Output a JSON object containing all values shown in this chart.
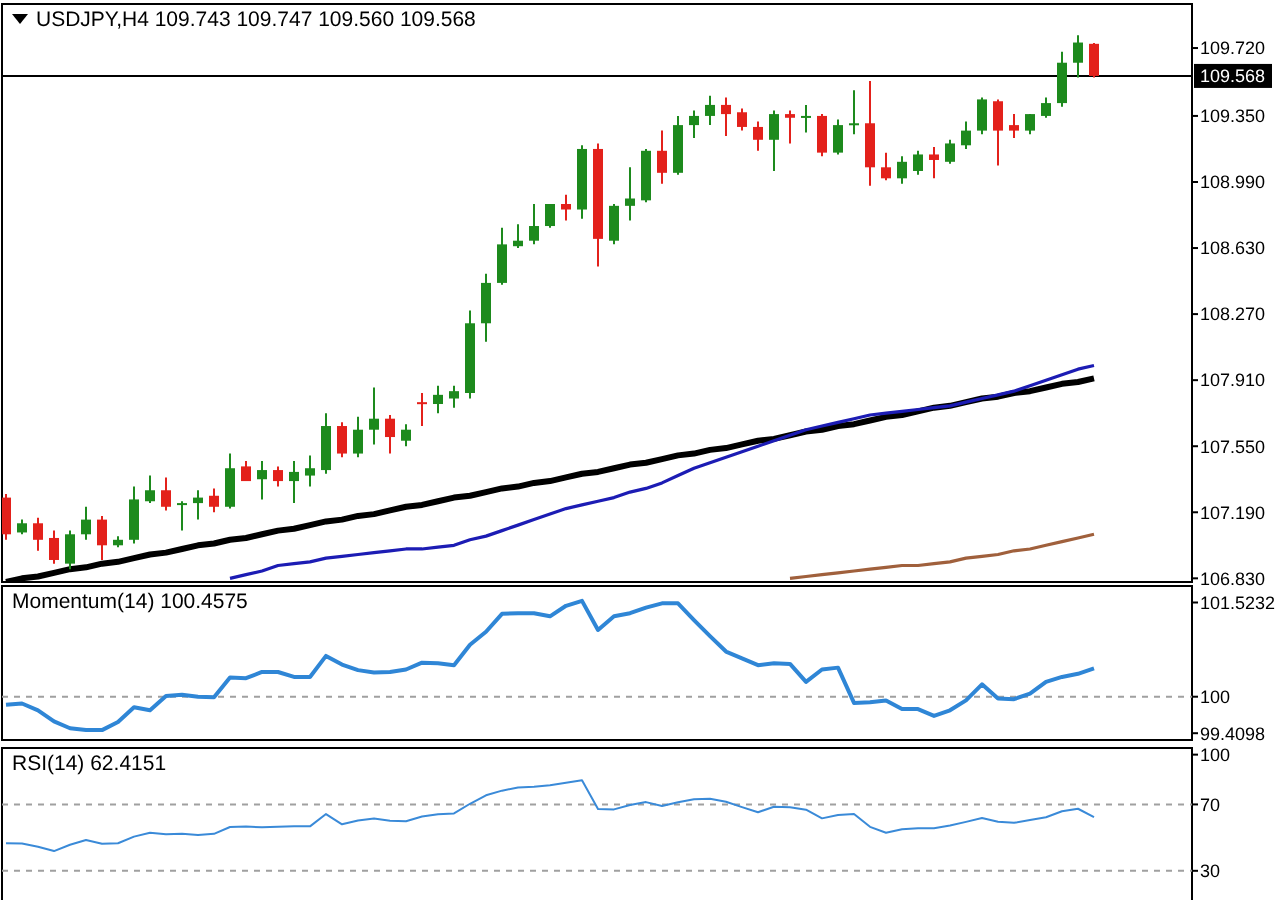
{
  "chart_data": [
    {
      "type": "candlestick",
      "title": "USDJPY,H4  109.743 109.747 109.560 109.568",
      "tick_labels": "y",
      "ylim": [
        106.81,
        109.96
      ],
      "yticks": [
        {
          "value": 106.83,
          "label": "106.830"
        },
        {
          "value": 107.19,
          "label": "107.190"
        },
        {
          "value": 107.55,
          "label": "107.550"
        },
        {
          "value": 107.91,
          "label": "107.910"
        },
        {
          "value": 108.27,
          "label": "108.270"
        },
        {
          "value": 108.63,
          "label": "108.630"
        },
        {
          "value": 108.99,
          "label": "108.990"
        },
        {
          "value": 109.35,
          "label": "109.350"
        },
        {
          "value": 109.72,
          "label": "109.720"
        }
      ],
      "categories": [
        null,
        null,
        null,
        null,
        null,
        null,
        null,
        null,
        null,
        null,
        null,
        null,
        null,
        null,
        null,
        null,
        null,
        null,
        null,
        null,
        null,
        null,
        null,
        null,
        null,
        null,
        null,
        null,
        null,
        null,
        null,
        null,
        null,
        null,
        null,
        null,
        null,
        null,
        null,
        null,
        null,
        null,
        null,
        null,
        null,
        null,
        null,
        null,
        null,
        null,
        null,
        null,
        null,
        null,
        null,
        null,
        null,
        null,
        null,
        null,
        null,
        null,
        null,
        null,
        null,
        null,
        null,
        null,
        null
      ],
      "ohlc": [
        [
          107.27,
          107.29,
          107.04,
          107.07
        ],
        [
          107.08,
          107.15,
          107.07,
          107.13
        ],
        [
          107.13,
          107.16,
          106.98,
          107.04
        ],
        [
          107.05,
          107.09,
          106.91,
          106.93
        ],
        [
          106.91,
          107.09,
          106.88,
          107.07
        ],
        [
          107.07,
          107.22,
          107.04,
          107.15
        ],
        [
          107.15,
          107.17,
          106.93,
          107.01
        ],
        [
          107.01,
          107.06,
          107.0,
          107.04
        ],
        [
          107.04,
          107.33,
          107.02,
          107.26
        ],
        [
          107.25,
          107.39,
          107.24,
          107.31
        ],
        [
          107.31,
          107.38,
          107.2,
          107.22
        ],
        [
          107.23,
          107.25,
          107.09,
          107.24
        ],
        [
          107.24,
          107.31,
          107.15,
          107.27
        ],
        [
          107.28,
          107.32,
          107.19,
          107.22
        ],
        [
          107.22,
          107.51,
          107.21,
          107.43
        ],
        [
          107.44,
          107.47,
          107.36,
          107.36
        ],
        [
          107.37,
          107.47,
          107.26,
          107.42
        ],
        [
          107.42,
          107.44,
          107.33,
          107.36
        ],
        [
          107.36,
          107.47,
          107.24,
          107.41
        ],
        [
          107.39,
          107.5,
          107.33,
          107.43
        ],
        [
          107.42,
          107.73,
          107.4,
          107.66
        ],
        [
          107.66,
          107.68,
          107.49,
          107.51
        ],
        [
          107.51,
          107.71,
          107.49,
          107.64
        ],
        [
          107.64,
          107.87,
          107.56,
          107.7
        ],
        [
          107.7,
          107.72,
          107.51,
          107.6
        ],
        [
          107.58,
          107.67,
          107.55,
          107.64
        ],
        [
          107.79,
          107.84,
          107.66,
          107.78
        ],
        [
          107.78,
          107.88,
          107.73,
          107.83
        ],
        [
          107.81,
          107.88,
          107.76,
          107.85
        ],
        [
          107.84,
          108.29,
          107.81,
          108.22
        ],
        [
          108.22,
          108.49,
          108.12,
          108.44
        ],
        [
          108.44,
          108.74,
          108.43,
          108.65
        ],
        [
          108.64,
          108.76,
          108.63,
          108.67
        ],
        [
          108.67,
          108.87,
          108.65,
          108.75
        ],
        [
          108.75,
          108.87,
          108.74,
          108.87
        ],
        [
          108.87,
          108.92,
          108.78,
          108.84
        ],
        [
          108.84,
          109.19,
          108.79,
          109.17
        ],
        [
          109.17,
          109.2,
          108.53,
          108.68
        ],
        [
          108.67,
          108.87,
          108.65,
          108.86
        ],
        [
          108.86,
          109.07,
          108.78,
          108.9
        ],
        [
          108.89,
          109.17,
          108.88,
          109.16
        ],
        [
          109.16,
          109.27,
          108.98,
          109.04
        ],
        [
          109.04,
          109.35,
          109.03,
          109.3
        ],
        [
          109.3,
          109.38,
          109.23,
          109.35
        ],
        [
          109.35,
          109.46,
          109.3,
          109.41
        ],
        [
          109.41,
          109.45,
          109.24,
          109.36
        ],
        [
          109.37,
          109.39,
          109.27,
          109.29
        ],
        [
          109.29,
          109.32,
          109.16,
          109.22
        ],
        [
          109.22,
          109.38,
          109.05,
          109.36
        ],
        [
          109.36,
          109.38,
          109.2,
          109.34
        ],
        [
          109.34,
          109.41,
          109.26,
          109.35
        ],
        [
          109.35,
          109.36,
          109.13,
          109.15
        ],
        [
          109.15,
          109.33,
          109.14,
          109.3
        ],
        [
          109.3,
          109.49,
          109.25,
          109.31
        ],
        [
          109.31,
          109.54,
          108.97,
          109.07
        ],
        [
          109.07,
          109.15,
          109.0,
          109.01
        ],
        [
          109.01,
          109.13,
          108.98,
          109.1
        ],
        [
          109.05,
          109.16,
          109.03,
          109.14
        ],
        [
          109.14,
          109.18,
          109.01,
          109.11
        ],
        [
          109.1,
          109.22,
          109.09,
          109.2
        ],
        [
          109.19,
          109.32,
          109.17,
          109.27
        ],
        [
          109.27,
          109.45,
          109.25,
          109.44
        ],
        [
          109.43,
          109.44,
          109.08,
          109.27
        ],
        [
          109.3,
          109.36,
          109.23,
          109.27
        ],
        [
          109.27,
          109.36,
          109.25,
          109.36
        ],
        [
          109.35,
          109.45,
          109.34,
          109.42
        ],
        [
          109.42,
          109.7,
          109.4,
          109.64
        ],
        [
          109.64,
          109.79,
          109.56,
          109.75
        ],
        [
          109.743,
          109.747,
          109.56,
          109.568
        ]
      ],
      "colors": [
        "#e3211b",
        "#1d8a1d",
        "#e3211b",
        "#e3211b",
        "#1d8a1d",
        "#1d8a1d",
        "#e3211b",
        "#1d8a1d",
        "#1d8a1d",
        "#1d8a1d",
        "#e3211b",
        "#1d8a1d",
        "#1d8a1d",
        "#e3211b",
        "#1d8a1d",
        "#e3211b",
        "#1d8a1d",
        "#e3211b",
        "#1d8a1d",
        "#1d8a1d",
        "#1d8a1d",
        "#e3211b",
        "#1d8a1d",
        "#1d8a1d",
        "#e3211b",
        "#1d8a1d",
        "#e3211b",
        "#1d8a1d",
        "#1d8a1d",
        "#1d8a1d",
        "#1d8a1d",
        "#1d8a1d",
        "#1d8a1d",
        "#1d8a1d",
        "#1d8a1d",
        "#e3211b",
        "#1d8a1d",
        "#e3211b",
        "#1d8a1d",
        "#1d8a1d",
        "#1d8a1d",
        "#e3211b",
        "#1d8a1d",
        "#1d8a1d",
        "#1d8a1d",
        "#e3211b",
        "#e3211b",
        "#e3211b",
        "#1d8a1d",
        "#e3211b",
        "#1d8a1d",
        "#e3211b",
        "#1d8a1d",
        "#1d8a1d",
        "#e3211b",
        "#e3211b",
        "#1d8a1d",
        "#1d8a1d",
        "#e3211b",
        "#1d8a1d",
        "#1d8a1d",
        "#1d8a1d",
        "#e3211b",
        "#e3211b",
        "#1d8a1d",
        "#1d8a1d",
        "#1d8a1d",
        "#1d8a1d",
        "#e3211b"
      ],
      "series": [
        {
          "type": "line",
          "color": "#000000",
          "values": [
            106.81,
            106.83,
            106.84,
            106.86,
            106.88,
            106.89,
            106.91,
            106.92,
            106.94,
            106.96,
            106.97,
            106.99,
            107.01,
            107.02,
            107.04,
            107.05,
            107.07,
            107.09,
            107.1,
            107.12,
            107.14,
            107.15,
            107.17,
            107.18,
            107.2,
            107.22,
            107.23,
            107.25,
            107.27,
            107.28,
            107.3,
            107.32,
            107.33,
            107.35,
            107.36,
            107.38,
            107.4,
            107.41,
            107.43,
            107.45,
            107.46,
            107.48,
            107.5,
            107.51,
            107.53,
            107.54,
            107.56,
            107.58,
            107.59,
            107.61,
            107.63,
            107.64,
            107.66,
            107.67,
            107.69,
            107.71,
            107.72,
            107.74,
            107.76,
            107.77,
            107.79,
            107.81,
            107.82,
            107.84,
            107.85,
            107.87,
            107.89,
            107.9,
            107.92
          ]
        },
        {
          "type": "line",
          "color": "#1c1cb4",
          "values": [
            null,
            null,
            null,
            null,
            null,
            null,
            null,
            null,
            null,
            null,
            null,
            null,
            null,
            null,
            106.83,
            106.85,
            106.87,
            106.9,
            106.91,
            106.92,
            106.94,
            106.95,
            106.96,
            106.97,
            106.98,
            106.99,
            106.99,
            107.0,
            107.01,
            107.04,
            107.06,
            107.09,
            107.12,
            107.15,
            107.18,
            107.21,
            107.23,
            107.25,
            107.27,
            107.3,
            107.32,
            107.35,
            107.39,
            107.43,
            107.46,
            107.49,
            107.52,
            107.55,
            107.58,
            107.61,
            107.64,
            107.66,
            107.68,
            107.7,
            107.72,
            107.73,
            107.74,
            107.75,
            107.76,
            107.77,
            107.79,
            107.81,
            107.83,
            107.85,
            107.88,
            107.91,
            107.94,
            107.97,
            107.99
          ]
        },
        {
          "type": "line",
          "color": "#a0603c",
          "values": [
            null,
            null,
            null,
            null,
            null,
            null,
            null,
            null,
            null,
            null,
            null,
            null,
            null,
            null,
            null,
            null,
            null,
            null,
            null,
            null,
            null,
            null,
            null,
            null,
            null,
            null,
            null,
            null,
            null,
            null,
            null,
            null,
            null,
            null,
            null,
            null,
            null,
            null,
            null,
            null,
            null,
            null,
            null,
            null,
            null,
            null,
            null,
            null,
            null,
            106.83,
            106.84,
            106.85,
            106.86,
            106.87,
            106.88,
            106.89,
            106.9,
            106.9,
            106.91,
            106.92,
            106.94,
            106.95,
            106.96,
            106.98,
            106.99,
            107.01,
            107.03,
            107.05,
            107.07
          ]
        }
      ],
      "ref_lines": [
        {
          "axis": "y",
          "value": 109.568,
          "label": "109.568",
          "color": "#000000",
          "line_style": "solid"
        }
      ]
    },
    {
      "type": "line",
      "title": "Momentum(14) 100.4575",
      "tick_labels": "y",
      "ylim": [
        99.3,
        101.79
      ],
      "yticks": [
        99.4098,
        100,
        101.5232
      ],
      "categories": [
        null,
        null,
        null,
        null,
        null,
        null,
        null,
        null,
        null,
        null,
        null,
        null,
        null,
        null,
        null,
        null,
        null,
        null,
        null,
        null,
        null,
        null,
        null,
        null,
        null,
        null,
        null,
        null,
        null,
        null,
        null,
        null,
        null,
        null,
        null,
        null,
        null,
        null,
        null,
        null,
        null,
        null,
        null,
        null,
        null,
        null,
        null,
        null,
        null,
        null,
        null,
        null,
        null,
        null,
        null,
        null,
        null,
        null,
        null,
        null,
        null,
        null,
        null,
        null,
        null,
        null,
        null,
        null,
        null
      ],
      "series": [
        {
          "color": "#2f86d6",
          "values": [
            99.87,
            99.89,
            99.78,
            99.6,
            99.49,
            99.46,
            99.46,
            99.59,
            99.83,
            99.78,
            100.01,
            100.03,
            100.0,
            99.99,
            100.31,
            100.3,
            100.4,
            100.4,
            100.32,
            100.32,
            100.66,
            100.52,
            100.43,
            100.39,
            100.4,
            100.44,
            100.55,
            100.54,
            100.51,
            100.84,
            101.05,
            101.34,
            101.35,
            101.35,
            101.3,
            101.47,
            101.55,
            101.08,
            101.3,
            101.35,
            101.44,
            101.51,
            101.51,
            101.24,
            100.98,
            100.73,
            100.62,
            100.51,
            100.54,
            100.53,
            100.24,
            100.44,
            100.47,
            99.9,
            99.91,
            99.94,
            99.8,
            99.8,
            99.69,
            99.78,
            99.94,
            100.2,
            99.97,
            99.96,
            100.05,
            100.24,
            100.32,
            100.37,
            100.4575
          ]
        }
      ],
      "ref_lines": [
        {
          "axis": "y",
          "value": 100,
          "color": "#a0a0a0",
          "line_style": "dashed"
        }
      ]
    },
    {
      "type": "line",
      "title": "RSI(14) 62.4151",
      "tick_labels": "y",
      "ylim": [
        10,
        104
      ],
      "yticks": [
        30,
        70,
        100
      ],
      "categories": [
        null,
        null,
        null,
        null,
        null,
        null,
        null,
        null,
        null,
        null,
        null,
        null,
        null,
        null,
        null,
        null,
        null,
        null,
        null,
        null,
        null,
        null,
        null,
        null,
        null,
        null,
        null,
        null,
        null,
        null,
        null,
        null,
        null,
        null,
        null,
        null,
        null,
        null,
        null,
        null,
        null,
        null,
        null,
        null,
        null,
        null,
        null,
        null,
        null,
        null,
        null,
        null,
        null,
        null,
        null,
        null,
        null,
        null,
        null,
        null,
        null,
        null,
        null,
        null,
        null,
        null,
        null,
        null,
        null
      ],
      "series": [
        {
          "color": "#3a8ad8",
          "values": [
            46.6,
            46.4,
            44.5,
            41.9,
            45.7,
            48.6,
            46.3,
            46.6,
            50.6,
            52.9,
            52,
            52.4,
            51.6,
            52.3,
            56.4,
            56.7,
            56.2,
            56.6,
            56.8,
            56.8,
            64.2,
            58,
            60.3,
            61.5,
            60.2,
            59.9,
            62.7,
            64.1,
            64.6,
            70.4,
            75.5,
            78.3,
            80.2,
            80.6,
            81.6,
            83,
            84.6,
            67.2,
            67,
            69.7,
            71.4,
            69.1,
            71.3,
            73.1,
            73.4,
            71.6,
            68.4,
            65.3,
            68.6,
            68.3,
            66.8,
            61.6,
            63.6,
            64.2,
            56.5,
            52.9,
            55,
            55.7,
            55.7,
            57.3,
            59.5,
            61.8,
            59.6,
            58.9,
            60.6,
            62.3,
            65.9,
            67.4,
            62.4151
          ]
        }
      ],
      "ref_lines": [
        {
          "axis": "y",
          "value": 70,
          "color": "#a0a0a0",
          "line_style": "dashed"
        },
        {
          "axis": "y",
          "value": 30,
          "color": "#a0a0a0",
          "line_style": "dashed"
        }
      ]
    }
  ]
}
